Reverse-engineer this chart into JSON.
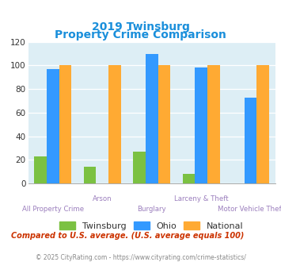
{
  "title_line1": "2019 Twinsburg",
  "title_line2": "Property Crime Comparison",
  "categories": [
    "All Property Crime",
    "Arson",
    "Burglary",
    "Larceny & Theft",
    "Motor Vehicle Theft"
  ],
  "twinsburg": [
    23,
    14,
    27,
    8,
    0
  ],
  "ohio": [
    97,
    0,
    110,
    98,
    73
  ],
  "national": [
    100,
    100,
    100,
    100,
    100
  ],
  "bar_color_twinsburg": "#7bc142",
  "bar_color_ohio": "#3399ff",
  "bar_color_national": "#ffaa33",
  "ylim": [
    0,
    120
  ],
  "yticks": [
    0,
    20,
    40,
    60,
    80,
    100,
    120
  ],
  "background_color": "#ddeef5",
  "title_color": "#1a8fdb",
  "xlabel_color": "#9b7ebd",
  "footnote1": "Compared to U.S. average. (U.S. average equals 100)",
  "footnote2": "© 2025 CityRating.com - https://www.cityrating.com/crime-statistics/",
  "footnote1_color": "#cc3300",
  "footnote2_color": "#888888",
  "footnote2_link_color": "#3399cc",
  "legend_labels": [
    "Twinsburg",
    "Ohio",
    "National"
  ],
  "legend_text_color": "#333333",
  "row1_indices": [
    1,
    3
  ],
  "row2_indices": [
    0,
    2,
    4
  ]
}
